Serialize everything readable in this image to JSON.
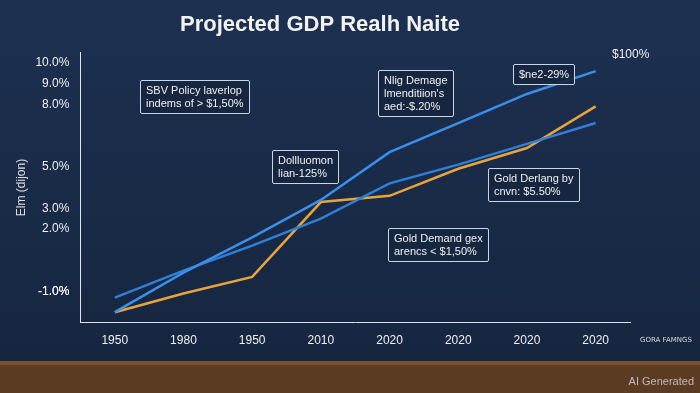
{
  "chart_data": {
    "type": "line",
    "title": "Projected GDP Realh Naite",
    "y_label": "Elm (dijon)",
    "categories": [
      "1950",
      "1980",
      "1950",
      "2010",
      "2020",
      "2020",
      "2020",
      "2020"
    ],
    "series": [
      {
        "color": "#3a8fe8",
        "values": [
          -2.0,
          -0.1,
          1.6,
          3.4,
          5.7,
          7.1,
          8.5,
          9.6
        ],
        "marker": "none",
        "line_style": "solid"
      },
      {
        "color": "#2f7fd6",
        "values": [
          -1.3,
          0.0,
          1.2,
          2.5,
          4.2,
          5.1,
          6.1,
          7.1
        ],
        "marker": "none",
        "line_style": "solid"
      },
      {
        "color": "#e8a33d",
        "values": [
          -2.0,
          -1.1,
          -0.3,
          3.3,
          3.6,
          4.9,
          5.9,
          7.9
        ],
        "marker": "none",
        "line_style": "solid"
      }
    ],
    "ylim": [
      -2.5,
      10.5
    ],
    "yticks": [
      {
        "value": 10,
        "label": "10.0%"
      },
      {
        "value": 9,
        "label": "9.0%"
      },
      {
        "value": 8,
        "label": "8.0%"
      },
      {
        "value": 5,
        "label": "5.0%"
      },
      {
        "value": 3,
        "label": "3.0%"
      },
      {
        "value": 2,
        "label": "2.0%"
      },
      {
        "value": -1,
        "label": "-1.0%"
      },
      {
        "value": -1,
        "label": "-1.0%"
      }
    ],
    "grid": false,
    "annotations": [
      "SBV Policy laverlop\nindems of > $1,50%",
      "Dollluomon\nlian-125%",
      "Nlig Demage\nlmenditiion's\naed:-$.20%",
      "$ne2-29%",
      "Gold Derlang by\ncnvn: $5.50%",
      "Gold Demand gex\narencs < $1,50%",
      "$100%"
    ],
    "logo": "GORA FAMNGS",
    "watermark": "AI Generated"
  }
}
